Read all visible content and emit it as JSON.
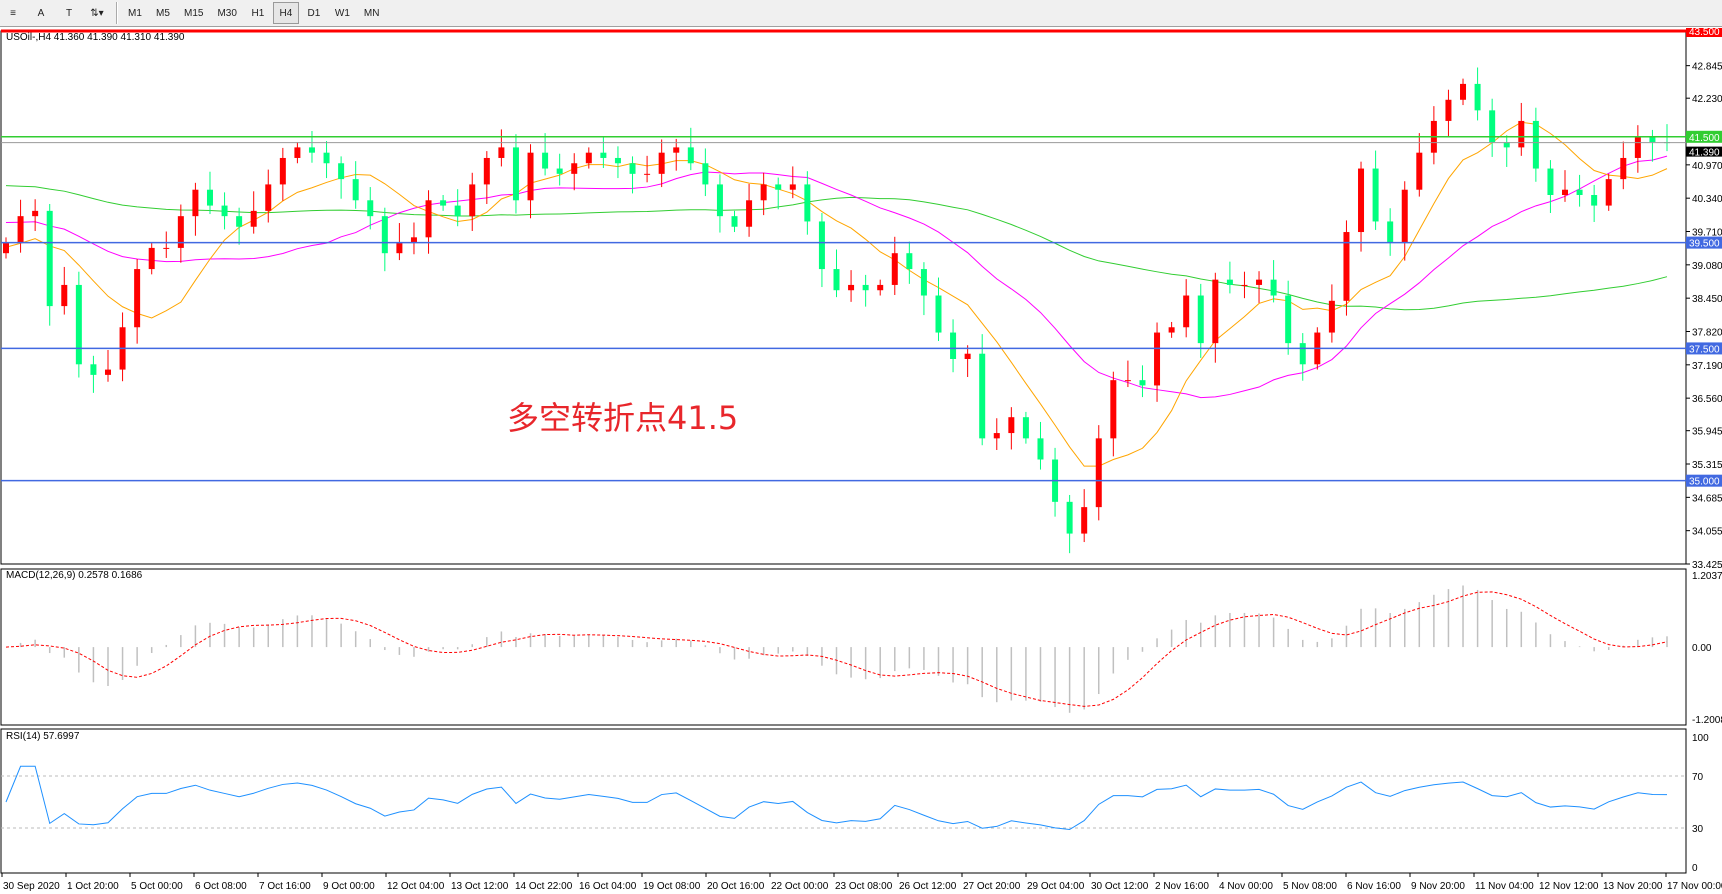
{
  "toolbar": {
    "tools": [
      {
        "name": "fibo-tool",
        "label": "≡"
      },
      {
        "name": "text-tool",
        "label": "A"
      },
      {
        "name": "text-label-tool",
        "label": "T"
      },
      {
        "name": "arrows-tool",
        "label": "⇅▾"
      }
    ],
    "timeframes": [
      "M1",
      "M5",
      "M15",
      "M30",
      "H1",
      "H4",
      "D1",
      "W1",
      "MN"
    ],
    "active_timeframe": "H4"
  },
  "chart": {
    "symbol_line": "USOil-,H4  41.360 41.390 41.310 41.390",
    "annotation": "多空转折点41.5",
    "colors": {
      "bull": "#ff0000",
      "bear": "#00ff7f",
      "ma_fast": "#ffa500",
      "ma_mid": "#ff00ff",
      "ma_slow": "#32cd32",
      "hline_blue": "#4169e1",
      "hline_green": "#32cd32",
      "hline_red": "#ff0000",
      "rsi": "#1e90ff",
      "macd_signal": "#ff0000",
      "macd_hist": "#c0c0c0"
    }
  },
  "price_axis": {
    "ticks": [
      "42.845",
      "42.230",
      "40.970",
      "40.340",
      "39.710",
      "39.080",
      "38.450",
      "37.820",
      "37.190",
      "36.560",
      "35.945",
      "35.315",
      "34.685",
      "34.055",
      "33.425"
    ],
    "range": [
      33.425,
      43.5
    ],
    "current": "41.390"
  },
  "hlines": [
    {
      "price": 43.5,
      "label": "43.500",
      "color": "red"
    },
    {
      "price": 41.5,
      "label": "41.500",
      "color": "green"
    },
    {
      "price": 39.5,
      "label": "39.500",
      "color": "blue"
    },
    {
      "price": 37.5,
      "label": "37.500",
      "color": "blue"
    },
    {
      "price": 35.0,
      "label": "35.000",
      "color": "blue"
    }
  ],
  "closes": [
    39.5,
    40.0,
    40.1,
    38.3,
    38.7,
    37.2,
    37.0,
    37.1,
    37.9,
    39.0,
    39.4,
    39.4,
    40.0,
    40.5,
    40.2,
    40.0,
    39.8,
    40.1,
    40.6,
    41.1,
    41.3,
    41.2,
    41.0,
    40.7,
    40.3,
    40.0,
    39.3,
    39.5,
    39.6,
    40.3,
    40.2,
    40.0,
    40.6,
    41.1,
    41.3,
    40.3,
    41.2,
    40.9,
    40.8,
    41.0,
    41.2,
    41.1,
    41.0,
    40.8,
    40.8,
    41.2,
    41.3,
    41.0,
    40.6,
    40.0,
    39.8,
    40.3,
    40.6,
    40.5,
    40.6,
    39.9,
    39.0,
    38.6,
    38.7,
    38.6,
    38.7,
    39.3,
    39.0,
    38.5,
    37.8,
    37.3,
    37.4,
    35.8,
    35.9,
    36.2,
    35.8,
    35.4,
    34.6,
    34.0,
    34.5,
    35.8,
    36.9,
    36.9,
    36.8,
    37.8,
    37.9,
    38.5,
    37.6,
    38.8,
    38.7,
    38.7,
    38.8,
    38.5,
    37.6,
    37.2,
    37.8,
    38.4,
    39.7,
    40.9,
    39.9,
    39.5,
    40.5,
    41.2,
    41.8,
    42.2,
    42.5,
    42.0,
    41.4,
    41.3,
    41.8,
    40.9,
    40.4,
    40.5,
    40.4,
    40.2,
    40.7,
    41.1,
    41.5,
    41.4,
    41.39
  ],
  "macd": {
    "label": "MACD(12,26,9) 0.2578 0.1686",
    "ticks": [
      "1.2037",
      "0.00",
      "-1.2008"
    ],
    "range": [
      -1.2008,
      1.2037
    ]
  },
  "rsi": {
    "label": "RSI(14) 57.6997",
    "ticks": [
      "100",
      "70",
      "30",
      "0"
    ],
    "levels": [
      30,
      70
    ]
  },
  "time_axis": [
    "30 Sep 2020",
    "1 Oct 20:00",
    "5 Oct 00:00",
    "6 Oct 08:00",
    "7 Oct 16:00",
    "9 Oct 00:00",
    "12 Oct 04:00",
    "13 Oct 12:00",
    "14 Oct 22:00",
    "16 Oct 04:00",
    "19 Oct 08:00",
    "20 Oct 16:00",
    "22 Oct 00:00",
    "23 Oct 08:00",
    "26 Oct 12:00",
    "27 Oct 20:00",
    "29 Oct 04:00",
    "30 Oct 12:00",
    "2 Nov 16:00",
    "4 Nov 00:00",
    "5 Nov 08:00",
    "6 Nov 16:00",
    "9 Nov 20:00",
    "11 Nov 04:00",
    "12 Nov 12:00",
    "13 Nov 20:00",
    "17 Nov 00:00"
  ]
}
